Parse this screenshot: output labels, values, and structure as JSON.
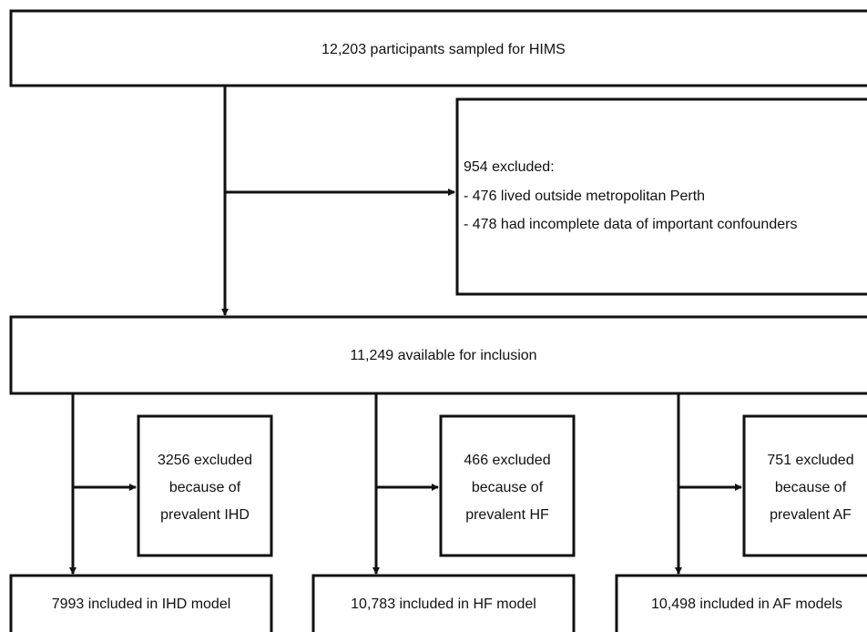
{
  "nodes": [
    {
      "label": "12,203 participants sampled for HIMS"
    },
    {
      "lines": [
        "954 excluded:",
        "- 476 lived outside metropolitan Perth",
        "- 478 had incomplete data of important confounders"
      ]
    },
    {
      "label": "11,249 available for inclusion"
    },
    {
      "lines": [
        "3256 excluded",
        "because of",
        "prevalent IHD"
      ]
    },
    {
      "lines": [
        "466 excluded",
        "because of",
        "prevalent HF"
      ]
    },
    {
      "lines": [
        "751 excluded",
        "because of",
        "prevalent AF"
      ]
    },
    {
      "label": "7993 included in IHD model"
    },
    {
      "label": "10,783 included in HF model"
    },
    {
      "label": "10,498 included in AF models"
    }
  ]
}
